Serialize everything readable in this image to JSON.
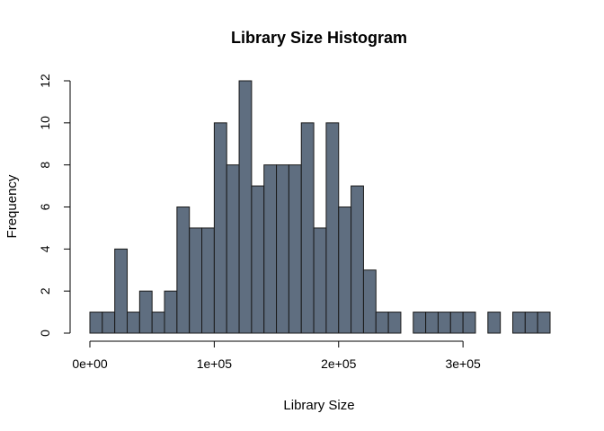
{
  "chart_data": {
    "type": "bar",
    "title": "Library Size Histogram",
    "xlabel": "Library Size",
    "ylabel": "Frequency",
    "bar_color": "#5f6e80",
    "bin_width": 10000,
    "x_start": 0,
    "xlim": [
      0,
      370000
    ],
    "ylim": [
      0,
      12
    ],
    "x_ticks": [
      0,
      100000,
      200000,
      300000
    ],
    "x_tick_labels": [
      "0e+00",
      "1e+05",
      "2e+05",
      "3e+05"
    ],
    "y_ticks": [
      0,
      2,
      4,
      6,
      8,
      10,
      12
    ],
    "y_tick_labels": [
      "0",
      "2",
      "4",
      "6",
      "8",
      "10",
      "12"
    ],
    "values": [
      1,
      1,
      4,
      1,
      2,
      1,
      2,
      6,
      5,
      5,
      10,
      8,
      12,
      7,
      8,
      8,
      8,
      10,
      5,
      10,
      6,
      7,
      3,
      1,
      1,
      0,
      1,
      1,
      1,
      1,
      1,
      0,
      1,
      0,
      1,
      1,
      1
    ]
  }
}
